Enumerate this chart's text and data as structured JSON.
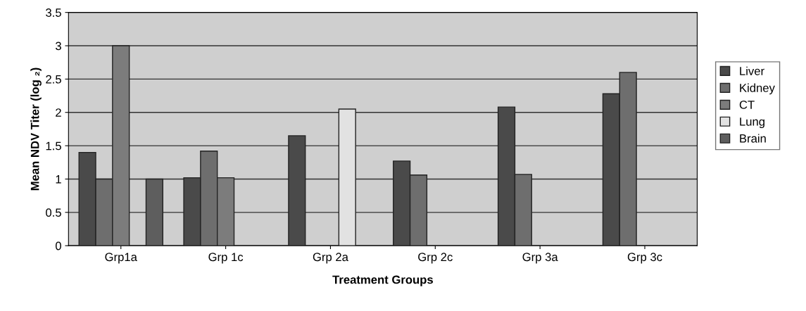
{
  "chart_data": {
    "type": "bar",
    "xlabel": "Treatment Groups",
    "ylabel": "Mean NDV Titer (log ₂)",
    "categories": [
      "Grp1a",
      "Grp 1c",
      "Grp 2a",
      "Grp 2c",
      "Grp 3a",
      "Grp 3c"
    ],
    "series": [
      {
        "name": "Liver",
        "color": "#4a4a4a",
        "values": [
          1.4,
          1.02,
          1.65,
          1.27,
          2.08,
          2.28
        ]
      },
      {
        "name": "Kidney",
        "color": "#6e6e6e",
        "values": [
          1.0,
          1.42,
          null,
          1.06,
          1.07,
          2.6
        ]
      },
      {
        "name": "CT",
        "color": "#7c7c7c",
        "values": [
          3.0,
          1.02,
          null,
          null,
          null,
          null
        ]
      },
      {
        "name": "Lung",
        "color": "#e2e2e2",
        "values": [
          null,
          null,
          2.05,
          null,
          null,
          null
        ]
      },
      {
        "name": "Brain",
        "color": "#5e5e5e",
        "values": [
          1.0,
          null,
          null,
          null,
          null,
          null
        ]
      }
    ],
    "ylim": [
      0,
      3.5
    ],
    "yticks": [
      0,
      0.5,
      1,
      1.5,
      2,
      2.5,
      3,
      3.5
    ],
    "grid": "y",
    "legend": "right"
  }
}
